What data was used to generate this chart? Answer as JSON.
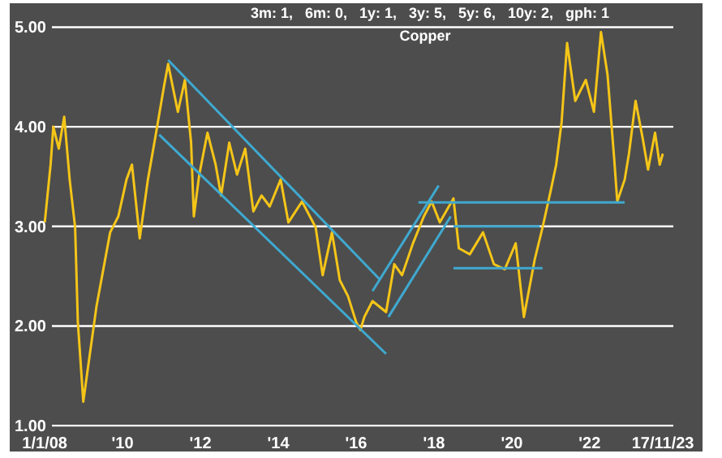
{
  "chart_data": {
    "type": "line",
    "title": "Copper",
    "subtitle": "3m: 1,   6m: 0,   1y: 1,   3y: 5,   5y: 6,   10y: 2,   gph: 1",
    "xlim": [
      2007.1,
      2024.9
    ],
    "ylim": [
      0.74,
      5.24
    ],
    "xticks": [
      {
        "value": 2008,
        "label": "1/1/08"
      },
      {
        "value": 2010,
        "label": "'10"
      },
      {
        "value": 2012,
        "label": "'12"
      },
      {
        "value": 2014,
        "label": "'14"
      },
      {
        "value": 2016,
        "label": "'16"
      },
      {
        "value": 2018,
        "label": "'18"
      },
      {
        "value": 2020,
        "label": "'20"
      },
      {
        "value": 2022,
        "label": "'22"
      },
      {
        "value": 2023.88,
        "label": "17/11/23"
      }
    ],
    "yticks": [
      {
        "value": 1,
        "label": "1.00"
      },
      {
        "value": 2,
        "label": "2.00"
      },
      {
        "value": 3,
        "label": "3.00"
      },
      {
        "value": 4,
        "label": "4.00"
      },
      {
        "value": 5,
        "label": "5.00"
      }
    ],
    "grid": "y",
    "line_style": "solid",
    "series": [
      {
        "color": "#f5c518",
        "x": [
          2008.0,
          2008.15,
          2008.22,
          2008.36,
          2008.5,
          2008.64,
          2008.78,
          2008.85,
          2008.99,
          2009.12,
          2009.33,
          2009.68,
          2009.89,
          2010.1,
          2010.24,
          2010.44,
          2010.65,
          2010.86,
          2011.07,
          2011.17,
          2011.42,
          2011.6,
          2011.76,
          2011.83,
          2011.97,
          2012.18,
          2012.39,
          2012.53,
          2012.74,
          2012.94,
          2013.15,
          2013.36,
          2013.57,
          2013.78,
          2014.06,
          2014.26,
          2014.61,
          2014.96,
          2015.14,
          2015.38,
          2015.58,
          2015.79,
          2016.0,
          2016.11,
          2016.21,
          2016.42,
          2016.77,
          2016.98,
          2017.18,
          2017.46,
          2017.74,
          2017.94,
          2018.15,
          2018.5,
          2018.64,
          2018.92,
          2019.26,
          2019.54,
          2019.82,
          2020.1,
          2020.31,
          2020.59,
          2020.79,
          2021.0,
          2021.14,
          2021.28,
          2021.42,
          2021.63,
          2021.9,
          2022.11,
          2022.29,
          2022.46,
          2022.63,
          2022.71,
          2022.9,
          2023.01,
          2023.18,
          2023.36,
          2023.5,
          2023.68,
          2023.8,
          2023.88
        ],
        "values": [
          3.04,
          3.62,
          4.0,
          3.78,
          4.1,
          3.47,
          2.99,
          2.04,
          1.24,
          1.61,
          2.2,
          2.94,
          3.1,
          3.47,
          3.62,
          2.88,
          3.47,
          3.94,
          4.42,
          4.63,
          4.15,
          4.47,
          3.84,
          3.1,
          3.52,
          3.94,
          3.62,
          3.31,
          3.84,
          3.52,
          3.78,
          3.15,
          3.31,
          3.2,
          3.47,
          3.04,
          3.25,
          2.99,
          2.51,
          2.94,
          2.46,
          2.3,
          2.04,
          1.96,
          2.09,
          2.25,
          2.14,
          2.62,
          2.51,
          2.83,
          3.1,
          3.25,
          3.04,
          3.28,
          2.78,
          2.72,
          2.94,
          2.62,
          2.57,
          2.83,
          2.09,
          2.67,
          2.99,
          3.36,
          3.62,
          4.05,
          4.84,
          4.26,
          4.47,
          4.15,
          4.95,
          4.52,
          3.68,
          3.25,
          3.47,
          3.73,
          4.26,
          3.89,
          3.57,
          3.94,
          3.62,
          3.73
        ]
      },
      {
        "color": "#3fa9d0",
        "x": [
          2011.17,
          2016.6
        ],
        "values": [
          4.67,
          2.47
        ]
      },
      {
        "color": "#3fa9d0",
        "x": [
          2010.94,
          2016.77
        ],
        "values": [
          3.92,
          1.72
        ]
      },
      {
        "color": "#3fa9d0",
        "x": [
          2016.42,
          2018.12
        ],
        "values": [
          2.35,
          3.41
        ]
      },
      {
        "color": "#3fa9d0",
        "x": [
          2016.83,
          2018.43
        ],
        "values": [
          2.09,
          3.1
        ]
      },
      {
        "color": "#3fa9d0",
        "x": [
          2017.6,
          2022.9
        ],
        "values": [
          3.24,
          3.24
        ]
      },
      {
        "color": "#3fa9d0",
        "x": [
          2018.5,
          2020.72
        ],
        "values": [
          3.0,
          3.0
        ]
      },
      {
        "color": "#3fa9d0",
        "x": [
          2018.5,
          2020.79
        ],
        "values": [
          2.58,
          2.58
        ]
      }
    ]
  }
}
